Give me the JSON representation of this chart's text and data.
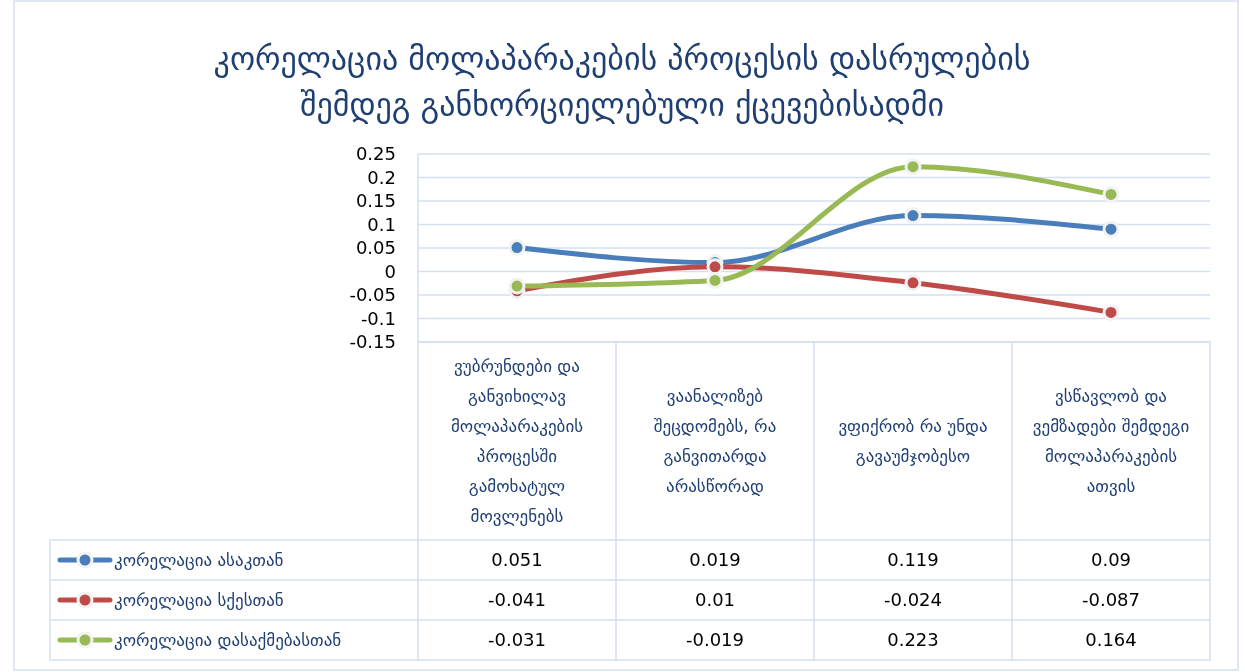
{
  "chart_data": {
    "type": "line",
    "title": "კორელაცია მოლაპარაკების პროცესის დასრულების შემდეგ განხორციელებული ქცევებისადმი",
    "categories": [
      "ვუბრუნდები და განვიხილავ მოლაპარაკების პროცესში გამოხატულ მოვლენებს",
      "ვაანალიზებ შეცდომებს, რა განვითარდა არასწორად",
      "ვფიქრობ რა უნდა გავაუმჯობესო",
      "ვსწავლობ და ვემზადები შემდეგი მოლაპარაკების ათვის"
    ],
    "series": [
      {
        "name": "კორელაცია ასაკთან",
        "color": "#4a7ebb",
        "values": [
          0.051,
          0.019,
          0.119,
          0.09
        ]
      },
      {
        "name": "კორელაცია სქესთან",
        "color": "#be4b48",
        "values": [
          -0.041,
          0.01,
          -0.024,
          -0.087
        ]
      },
      {
        "name": "კორელაცია დასაქმებასთან",
        "color": "#98b954",
        "values": [
          -0.031,
          -0.019,
          0.223,
          0.164
        ]
      }
    ],
    "ylim": [
      -0.15,
      0.25
    ],
    "yticks": [
      -0.15,
      -0.1,
      -0.05,
      0,
      0.05,
      0.1,
      0.15,
      0.2,
      0.25
    ],
    "grid": "y",
    "marker": "circle",
    "line_style": "solid",
    "data_labels": true,
    "legend": "bottom left"
  }
}
